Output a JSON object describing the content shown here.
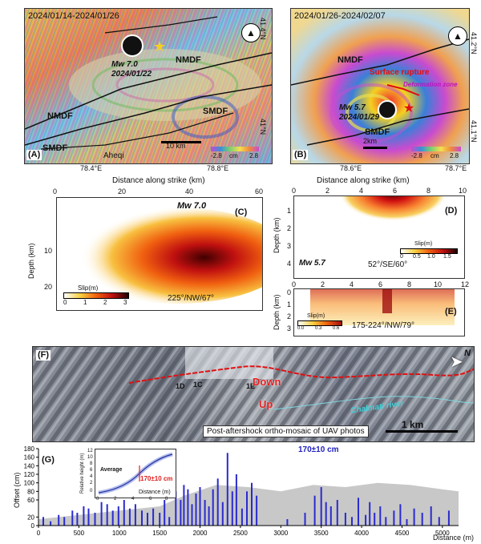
{
  "panelA": {
    "date_range": "2024/01/14-2024/01/26",
    "label": "(A)",
    "mw_label": "Mw 7.0",
    "date": "2024/01/22",
    "fault1": "NMDF",
    "fault2": "NMDF",
    "fault3": "SMDF",
    "fault4": "SMDF",
    "town": "Aheqi",
    "scalebar": "10 km",
    "cbar_min": "-2.8",
    "cbar_unit": "cm",
    "cbar_max": "2.8",
    "lon1": "78.4°E",
    "lon2": "78.8°E",
    "lat_top": "41.4°N",
    "lat_bottom": "41°N"
  },
  "panelB": {
    "date_range": "2024/01/26-2024/02/07",
    "label": "(B)",
    "fault1": "NMDF",
    "fault2": "SMDF",
    "rupture": "Surface rupture",
    "deform": "Deformation zone",
    "mw_label": "Mw 5.7",
    "date": "2024/01/29",
    "scalebar": "2km",
    "cbar_min": "-2.8",
    "cbar_unit": "cm",
    "cbar_max": "2.8",
    "lon1": "78.6°E",
    "lon2": "78.7°E",
    "lat_top": "41.2°N",
    "lat_bottom": "41.1°N"
  },
  "panelC": {
    "label": "(C)",
    "xtitle": "Distance along strike (km)",
    "ytitle": "Depth (km)",
    "mw": "Mw 7.0",
    "mech": "225°/NW/67°",
    "slip_title": "Slip(m)",
    "xticks": [
      "0",
      "20",
      "40",
      "60"
    ],
    "yticks": [
      "10",
      "20"
    ],
    "cticks": [
      "0",
      "1",
      "2",
      "3"
    ]
  },
  "panelD": {
    "label": "(D)",
    "xtitle": "Distance along strike (km)",
    "ytitle": "Depth (km)",
    "mw": "Mw 5.7",
    "mech": "52°/SE/60°",
    "slip_title": "Slip(m)",
    "xticks": [
      "0",
      "2",
      "4",
      "6",
      "8",
      "10"
    ],
    "yticks": [
      "1",
      "2",
      "3",
      "4"
    ],
    "cticks": [
      "0",
      "0.5",
      "1.0",
      "1.5"
    ]
  },
  "panelE": {
    "label": "(E)",
    "ytitle": "Depth (km)",
    "mech": "175-224°/NW/79°",
    "slip_title": "Slip(m)",
    "xticks": [
      "0",
      "2",
      "4",
      "6",
      "8",
      "10",
      "12"
    ],
    "yticks": [
      "0",
      "1",
      "2",
      "3"
    ],
    "cticks": [
      "0.0",
      "0.3",
      "0.6"
    ]
  },
  "panelF": {
    "label": "(F)",
    "down": "Down",
    "up": "Up",
    "river": "Chalmati river",
    "caption": "Post-aftershock ortho-mosaic of UAV photos",
    "scalebar": "1 km",
    "pt1": "1D",
    "pt2": "1C",
    "pt3": "1E",
    "north": "N"
  },
  "panelG": {
    "label": "(G)",
    "peak_label": "170±10 cm",
    "inset_label": "170±10 cm",
    "inset_avg": "Average",
    "inset_xtitle": "Distance (m)",
    "inset_ytitle": "Relative height (m)",
    "ytitle": "Offset (cm)",
    "xtitle": "Distance (m)",
    "inset_xticks": [
      "0",
      "2",
      "4",
      "6",
      "8"
    ],
    "inset_yticks": [
      "0",
      "2",
      "4",
      "6",
      "8",
      "10",
      "12"
    ]
  },
  "chart_data": {
    "type": "bar",
    "title": "",
    "xlabel": "Distance (m)",
    "ylabel": "Offset (cm)",
    "xlim": [
      0,
      5200
    ],
    "ylim": [
      0,
      180
    ],
    "xticks": [
      0,
      500,
      1000,
      1500,
      2000,
      2500,
      3000,
      3500,
      4000,
      4500,
      5000
    ],
    "yticks": [
      0,
      20,
      60,
      80,
      100,
      120,
      140,
      160,
      180
    ],
    "x": [
      60,
      150,
      250,
      320,
      420,
      480,
      560,
      620,
      700,
      780,
      850,
      920,
      990,
      1060,
      1130,
      1200,
      1280,
      1350,
      1420,
      1500,
      1560,
      1620,
      1700,
      1760,
      1800,
      1850,
      1900,
      1950,
      2000,
      2060,
      2110,
      2160,
      2220,
      2280,
      2340,
      2400,
      2450,
      2520,
      2580,
      2640,
      2700,
      3080,
      3300,
      3420,
      3500,
      3560,
      3620,
      3700,
      3800,
      3880,
      3960,
      4050,
      4100,
      4160,
      4230,
      4300,
      4400,
      4480,
      4560,
      4650,
      4750,
      4860,
      4960,
      5080
    ],
    "values": [
      20,
      10,
      25,
      20,
      35,
      30,
      45,
      40,
      30,
      55,
      50,
      35,
      45,
      60,
      40,
      50,
      35,
      30,
      40,
      30,
      60,
      20,
      80,
      60,
      95,
      85,
      50,
      75,
      90,
      60,
      45,
      85,
      110,
      55,
      170,
      80,
      120,
      40,
      80,
      100,
      70,
      15,
      30,
      70,
      90,
      55,
      45,
      60,
      30,
      20,
      65,
      25,
      55,
      30,
      45,
      20,
      35,
      50,
      15,
      40,
      30,
      45,
      20,
      35
    ],
    "background_profile": "gray topographic area"
  }
}
